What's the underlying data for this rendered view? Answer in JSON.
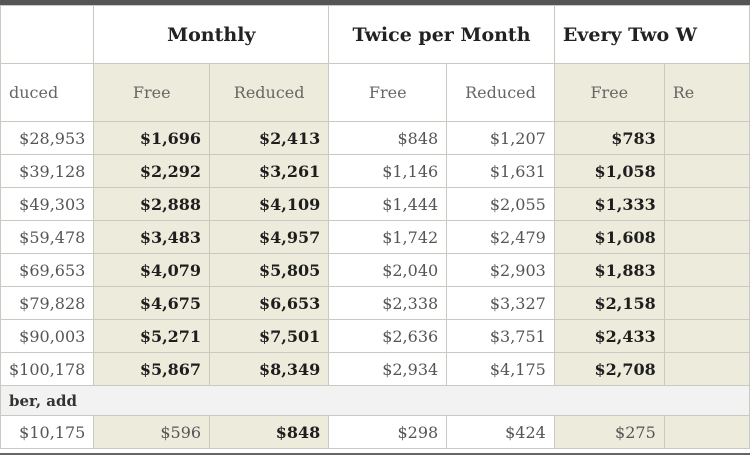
{
  "groups": {
    "monthly": "Monthly",
    "twice": "Twice per Month",
    "every_two": "Every Two W"
  },
  "subheaders": {
    "col0": "duced",
    "free": "Free",
    "reduced": "Reduced",
    "partial": "Re"
  },
  "rows": [
    [
      "$28,953",
      "$1,696",
      "$2,413",
      "$848",
      "$1,207",
      "$783"
    ],
    [
      "$39,128",
      "$2,292",
      "$3,261",
      "$1,146",
      "$1,631",
      "$1,058"
    ],
    [
      "$49,303",
      "$2,888",
      "$4,109",
      "$1,444",
      "$2,055",
      "$1,333"
    ],
    [
      "$59,478",
      "$3,483",
      "$4,957",
      "$1,742",
      "$2,479",
      "$1,608"
    ],
    [
      "$69,653",
      "$4,079",
      "$5,805",
      "$2,040",
      "$2,903",
      "$1,883"
    ],
    [
      "$79,828",
      "$4,675",
      "$6,653",
      "$2,338",
      "$3,327",
      "$2,158"
    ],
    [
      "$90,003",
      "$5,271",
      "$7,501",
      "$2,636",
      "$3,751",
      "$2,433"
    ],
    [
      "$100,178",
      "$5,867",
      "$8,349",
      "$2,934",
      "$4,175",
      "$2,708"
    ]
  ],
  "note": "ber, add",
  "add_row": [
    "$10,175",
    "$596",
    "$848",
    "$298",
    "$424",
    "$275"
  ]
}
